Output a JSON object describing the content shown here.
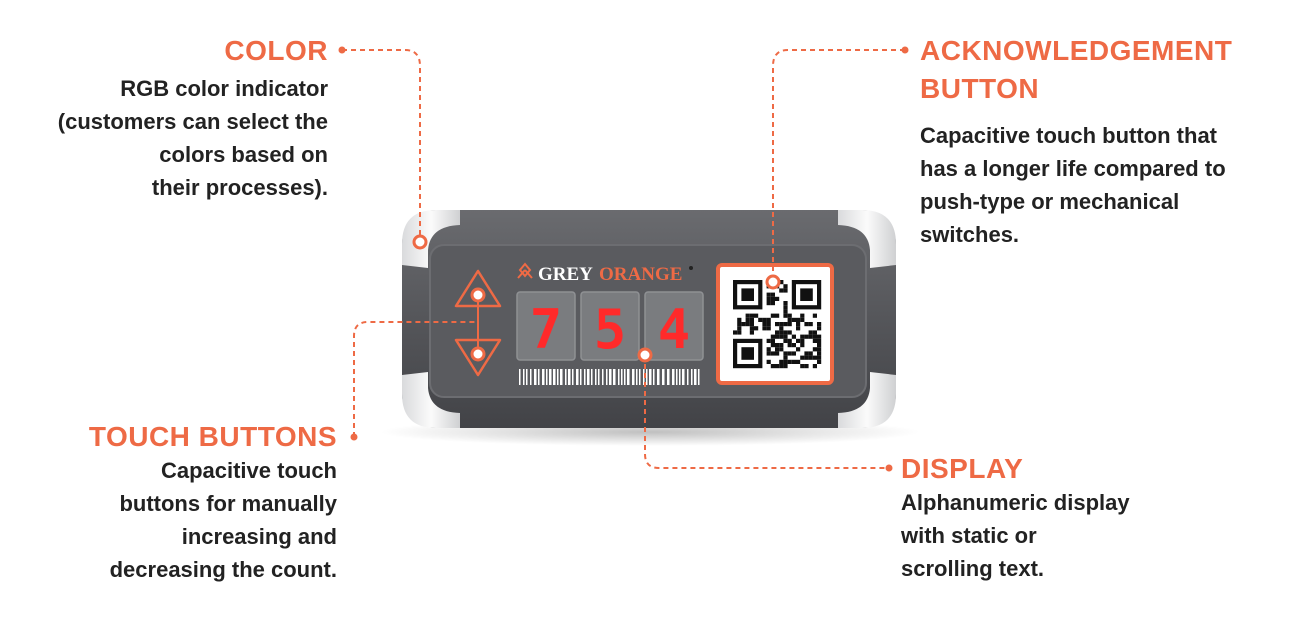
{
  "colors": {
    "accent": "#ee6a45",
    "text": "#222222",
    "device_body": "#55565a",
    "display_on": "#ff2a2a"
  },
  "callouts": {
    "color": {
      "title": "COLOR",
      "lines": [
        "RGB color indicator",
        "(customers can select the",
        "colors based on",
        "their processes)."
      ]
    },
    "ack": {
      "title_lines": [
        "ACKNOWLEDGEMENT",
        "BUTTON"
      ],
      "lines": [
        "Capacitive touch button that",
        "has a longer life compared to",
        "push-type or mechanical",
        "switches."
      ]
    },
    "touch": {
      "title": "TOUCH BUTTONS",
      "lines": [
        "Capacitive touch",
        "buttons for manually",
        "increasing and",
        "decreasing the count."
      ]
    },
    "display": {
      "title": "DISPLAY",
      "lines": [
        "Alphanumeric display",
        "with static or",
        "scrolling text."
      ]
    }
  },
  "device": {
    "brand_left": "GREY",
    "brand_right": "ORANGE",
    "digits": [
      "7",
      "5",
      "4"
    ],
    "icons": [
      "up-arrow-icon",
      "down-arrow-icon",
      "qr-code-icon",
      "barcode-icon",
      "logo-icon"
    ]
  }
}
